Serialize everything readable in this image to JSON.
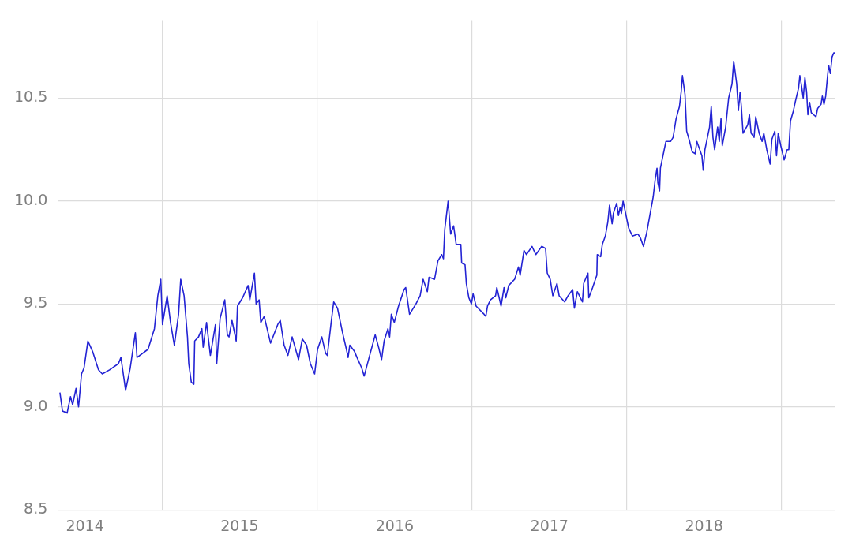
{
  "chart_data": {
    "type": "line",
    "x": [
      "2014-05-04",
      "2014-05-10",
      "2014-05-21",
      "2014-05-29",
      "2014-06-03",
      "2014-06-11",
      "2014-06-17",
      "2014-06-24",
      "2014-06-30",
      "2014-07-09",
      "2014-07-20",
      "2014-08-03",
      "2014-08-12",
      "2014-08-29",
      "2014-09-19",
      "2014-09-25",
      "2014-10-06",
      "2014-10-17",
      "2014-10-29",
      "2014-11-02",
      "2014-11-28",
      "2014-12-13",
      "2014-12-21",
      "2014-12-28",
      "2015-01-01",
      "2015-01-12",
      "2015-01-20",
      "2015-01-29",
      "2015-02-08",
      "2015-02-13",
      "2015-02-21",
      "2015-03-01",
      "2015-03-04",
      "2015-03-10",
      "2015-03-16",
      "2015-03-18",
      "2015-03-27",
      "2015-04-04",
      "2015-04-07",
      "2015-04-15",
      "2015-04-24",
      "2015-05-06",
      "2015-05-09",
      "2015-05-17",
      "2015-05-28",
      "2015-06-03",
      "2015-06-07",
      "2015-06-14",
      "2015-06-24",
      "2015-06-27",
      "2015-07-09",
      "2015-07-22",
      "2015-07-26",
      "2015-08-06",
      "2015-08-10",
      "2015-08-17",
      "2015-08-21",
      "2015-08-29",
      "2015-09-13",
      "2015-09-30",
      "2015-10-06",
      "2015-10-15",
      "2015-10-24",
      "2015-11-03",
      "2015-11-18",
      "2015-11-27",
      "2015-12-07",
      "2015-12-16",
      "2015-12-26",
      "2016-01-02",
      "2016-01-12",
      "2016-01-21",
      "2016-01-25",
      "2016-02-03",
      "2016-02-09",
      "2016-02-18",
      "2016-03-01",
      "2016-03-10",
      "2016-03-14",
      "2016-03-18",
      "2016-03-29",
      "2016-04-04",
      "2016-04-15",
      "2016-04-21",
      "2016-04-30",
      "2016-05-17",
      "2016-05-25",
      "2016-06-01",
      "2016-06-07",
      "2016-06-16",
      "2016-06-20",
      "2016-06-24",
      "2016-07-01",
      "2016-07-11",
      "2016-07-24",
      "2016-07-28",
      "2016-08-06",
      "2016-08-21",
      "2016-08-31",
      "2016-09-07",
      "2016-09-17",
      "2016-09-21",
      "2016-10-04",
      "2016-10-12",
      "2016-10-21",
      "2016-10-25",
      "2016-10-28",
      "2016-11-05",
      "2016-11-11",
      "2016-11-18",
      "2016-11-24",
      "2016-12-05",
      "2016-12-07",
      "2016-12-15",
      "2016-12-18",
      "2016-12-24",
      "2016-12-30",
      "2017-01-03",
      "2017-01-10",
      "2017-01-29",
      "2017-02-02",
      "2017-02-06",
      "2017-02-13",
      "2017-02-25",
      "2017-02-28",
      "2017-03-10",
      "2017-03-17",
      "2017-03-21",
      "2017-03-28",
      "2017-04-11",
      "2017-04-20",
      "2017-04-24",
      "2017-05-03",
      "2017-05-09",
      "2017-05-22",
      "2017-05-31",
      "2017-06-14",
      "2017-06-23",
      "2017-06-27",
      "2017-07-04",
      "2017-07-10",
      "2017-07-20",
      "2017-07-25",
      "2017-08-07",
      "2017-08-15",
      "2017-08-26",
      "2017-08-30",
      "2017-09-06",
      "2017-09-18",
      "2017-09-21",
      "2017-10-01",
      "2017-10-03",
      "2017-10-12",
      "2017-10-22",
      "2017-10-23",
      "2017-10-31",
      "2017-11-04",
      "2017-11-11",
      "2017-11-17",
      "2017-11-21",
      "2017-11-27",
      "2017-11-30",
      "2017-12-08",
      "2017-12-12",
      "2017-12-16",
      "2017-12-19",
      "2017-12-23",
      "2017-12-27",
      "2018-01-05",
      "2018-01-14",
      "2018-01-27",
      "2018-02-02",
      "2018-02-09",
      "2018-02-17",
      "2018-02-24",
      "2018-03-04",
      "2018-03-09",
      "2018-03-13",
      "2018-03-15",
      "2018-03-19",
      "2018-03-21",
      "2018-03-30",
      "2018-04-03",
      "2018-04-14",
      "2018-04-20",
      "2018-04-27",
      "2018-05-05",
      "2018-05-09",
      "2018-05-12",
      "2018-05-18",
      "2018-05-22",
      "2018-05-29",
      "2018-06-04",
      "2018-06-11",
      "2018-06-15",
      "2018-06-27",
      "2018-06-30",
      "2018-07-04",
      "2018-07-15",
      "2018-07-19",
      "2018-07-23",
      "2018-07-27",
      "2018-08-03",
      "2018-08-07",
      "2018-08-11",
      "2018-08-14",
      "2018-08-22",
      "2018-08-29",
      "2018-09-06",
      "2018-09-10",
      "2018-09-17",
      "2018-09-21",
      "2018-09-25",
      "2018-09-28",
      "2018-10-02",
      "2018-10-13",
      "2018-10-17",
      "2018-10-21",
      "2018-10-28",
      "2018-11-01",
      "2018-11-09",
      "2018-11-16",
      "2018-11-20",
      "2018-11-27",
      "2018-12-05",
      "2018-12-09",
      "2018-12-16",
      "2018-12-20",
      "2018-12-24",
      "2018-12-30",
      "2019-01-07",
      "2019-01-14",
      "2019-01-18",
      "2019-01-22",
      "2019-01-29",
      "2019-02-02",
      "2019-02-10",
      "2019-02-13",
      "2019-02-17",
      "2019-02-21",
      "2019-02-25",
      "2019-03-01",
      "2019-03-04",
      "2019-03-08",
      "2019-03-12",
      "2019-03-23",
      "2019-03-27",
      "2019-04-04",
      "2019-04-07",
      "2019-04-11",
      "2019-04-15",
      "2019-04-19",
      "2019-04-22",
      "2019-04-26",
      "2019-04-30",
      "2019-05-04",
      "2019-05-08"
    ],
    "series": [
      {
        "color": "#2323d4",
        "values": [
          9.07,
          8.98,
          8.97,
          9.05,
          9.01,
          9.09,
          9.0,
          9.16,
          9.19,
          9.32,
          9.27,
          9.18,
          9.16,
          9.18,
          9.21,
          9.24,
          9.08,
          9.19,
          9.36,
          9.24,
          9.28,
          9.38,
          9.54,
          9.62,
          9.4,
          9.54,
          9.41,
          9.3,
          9.45,
          9.62,
          9.54,
          9.34,
          9.21,
          9.12,
          9.11,
          9.32,
          9.34,
          9.38,
          9.29,
          9.41,
          9.25,
          9.4,
          9.21,
          9.43,
          9.52,
          9.35,
          9.34,
          9.42,
          9.32,
          9.49,
          9.53,
          9.59,
          9.52,
          9.65,
          9.5,
          9.52,
          9.41,
          9.44,
          9.31,
          9.4,
          9.42,
          9.3,
          9.25,
          9.34,
          9.23,
          9.33,
          9.3,
          9.21,
          9.16,
          9.28,
          9.34,
          9.26,
          9.25,
          9.41,
          9.51,
          9.48,
          9.36,
          9.28,
          9.24,
          9.3,
          9.27,
          9.24,
          9.19,
          9.15,
          9.22,
          9.35,
          9.29,
          9.23,
          9.32,
          9.38,
          9.34,
          9.45,
          9.41,
          9.49,
          9.57,
          9.58,
          9.45,
          9.5,
          9.54,
          9.62,
          9.56,
          9.63,
          9.62,
          9.71,
          9.74,
          9.72,
          9.86,
          10.0,
          9.84,
          9.88,
          9.79,
          9.79,
          9.7,
          9.69,
          9.6,
          9.53,
          9.5,
          9.55,
          9.49,
          9.45,
          9.44,
          9.49,
          9.52,
          9.54,
          9.58,
          9.49,
          9.58,
          9.53,
          9.59,
          9.62,
          9.68,
          9.64,
          9.76,
          9.74,
          9.78,
          9.74,
          9.78,
          9.77,
          9.65,
          9.62,
          9.54,
          9.6,
          9.54,
          9.51,
          9.54,
          9.57,
          9.48,
          9.56,
          9.51,
          9.6,
          9.65,
          9.53,
          9.58,
          9.64,
          9.74,
          9.73,
          9.79,
          9.83,
          9.9,
          9.98,
          9.89,
          9.94,
          9.99,
          9.93,
          9.97,
          9.94,
          10.0,
          9.96,
          9.87,
          9.83,
          9.84,
          9.82,
          9.78,
          9.85,
          9.93,
          10.02,
          10.11,
          10.16,
          10.09,
          10.05,
          10.16,
          10.25,
          10.29,
          10.29,
          10.31,
          10.4,
          10.46,
          10.53,
          10.61,
          10.52,
          10.34,
          10.29,
          10.24,
          10.23,
          10.29,
          10.22,
          10.15,
          10.25,
          10.36,
          10.46,
          10.31,
          10.25,
          10.36,
          10.29,
          10.4,
          10.27,
          10.36,
          10.5,
          10.57,
          10.68,
          10.57,
          10.44,
          10.53,
          10.46,
          10.33,
          10.37,
          10.42,
          10.33,
          10.31,
          10.41,
          10.33,
          10.29,
          10.33,
          10.25,
          10.18,
          10.3,
          10.34,
          10.22,
          10.33,
          10.27,
          10.2,
          10.25,
          10.25,
          10.39,
          10.44,
          10.48,
          10.55,
          10.61,
          10.56,
          10.5,
          10.6,
          10.53,
          10.42,
          10.48,
          10.43,
          10.41,
          10.45,
          10.47,
          10.51,
          10.47,
          10.51,
          10.6,
          10.66,
          10.62,
          10.7,
          10.72,
          10.72
        ]
      }
    ],
    "xlim": [
      "2014-05-01",
      "2019-05-08"
    ],
    "xticks": [
      {
        "value": "2014-07-02",
        "label": "2014"
      },
      {
        "value": "2015-01-01",
        "label": null
      },
      {
        "value": "2015-07-02",
        "label": "2015"
      },
      {
        "value": "2016-01-01",
        "label": null
      },
      {
        "value": "2016-07-02",
        "label": "2016"
      },
      {
        "value": "2017-01-01",
        "label": null
      },
      {
        "value": "2017-07-02",
        "label": "2017"
      },
      {
        "value": "2018-01-01",
        "label": null
      },
      {
        "value": "2018-07-02",
        "label": "2018"
      },
      {
        "value": "2019-01-01",
        "label": null
      }
    ],
    "ylim": [
      8.5,
      10.88
    ],
    "yticks": [
      8.5,
      {
        "value": 9,
        "label": "9.0"
      },
      9.5,
      {
        "value": 10,
        "label": "10.0"
      },
      10.5
    ],
    "grid": true
  }
}
